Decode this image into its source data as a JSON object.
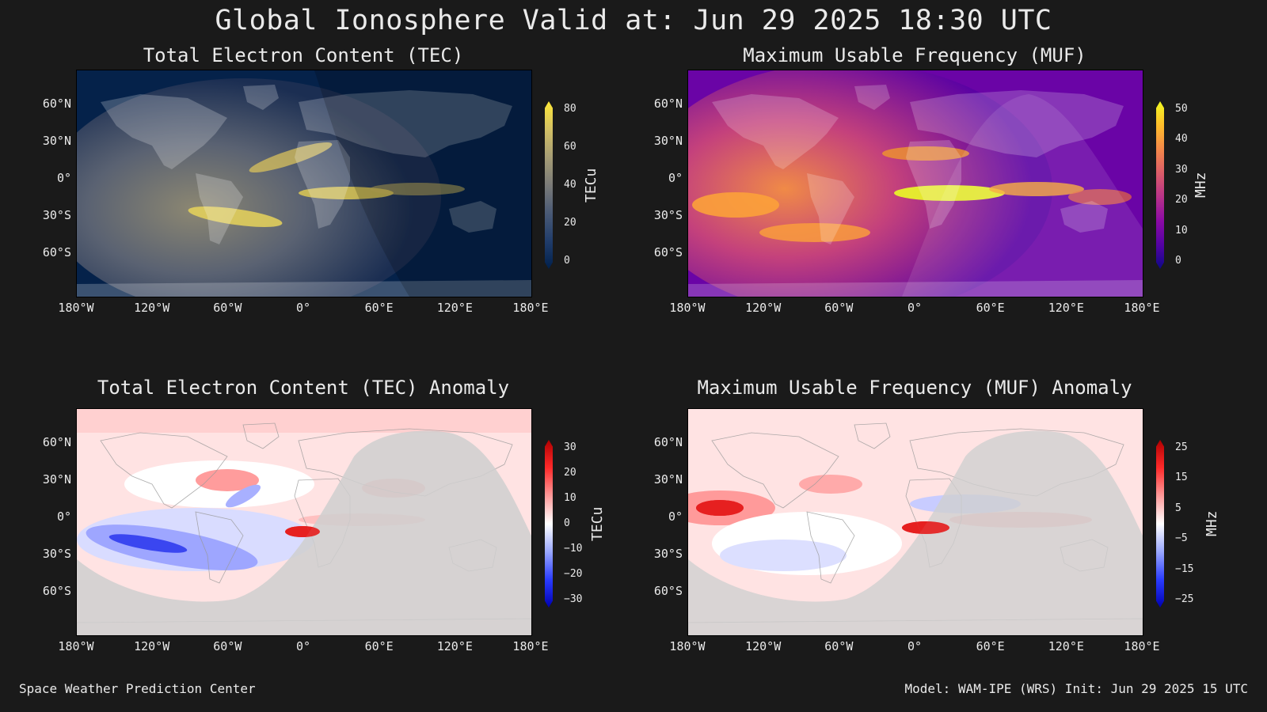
{
  "title": "Global Ionosphere Valid at: Jun 29 2025 18:30 UTC",
  "footer": {
    "left": "Space Weather Prediction Center",
    "right": "Model: WAM-IPE (WRS) Init: Jun 29 2025 15 UTC"
  },
  "lat_labels": [
    "60°N",
    "30°N",
    "0°",
    "30°S",
    "60°S"
  ],
  "lon_labels": [
    "180°W",
    "120°W",
    "60°W",
    "0°",
    "60°E",
    "120°E",
    "180°E"
  ],
  "panels": {
    "tec": {
      "title": "Total Electron Content (TEC)",
      "unit": "TECu",
      "ticks": [
        "80",
        "60",
        "40",
        "20",
        "0"
      ],
      "colorscale": [
        "#00204c",
        "#213d6b",
        "#4a5a76",
        "#7b7b78",
        "#a69d75",
        "#d3c064",
        "#fde737"
      ]
    },
    "muf": {
      "title": "Maximum Usable Frequency (MUF)",
      "unit": "MHz",
      "ticks": [
        "50",
        "40",
        "30",
        "20",
        "10",
        "0"
      ],
      "colorscale": [
        "#0d0887",
        "#5302a3",
        "#8b0aa5",
        "#b83289",
        "#db5c68",
        "#f48849",
        "#febd2a",
        "#f0f921"
      ]
    },
    "tec_anom": {
      "title": "Total Electron Content (TEC) Anomaly",
      "unit": "TECu",
      "ticks": [
        "30",
        "20",
        "10",
        "0",
        "−10",
        "−20",
        "−30"
      ],
      "colorscale": [
        "#0000b0",
        "#2a3cff",
        "#9aa8ff",
        "#ffffff",
        "#ff9a9a",
        "#ff2a2a",
        "#b00000"
      ]
    },
    "muf_anom": {
      "title": "Maximum Usable Frequency (MUF) Anomaly",
      "unit": "MHz",
      "ticks": [
        "25",
        "15",
        "5",
        "−5",
        "−15",
        "−25"
      ],
      "colorscale": [
        "#0000b0",
        "#2a3cff",
        "#9aa8ff",
        "#ffffff",
        "#ff9a9a",
        "#ff2a2a",
        "#b00000"
      ]
    }
  }
}
